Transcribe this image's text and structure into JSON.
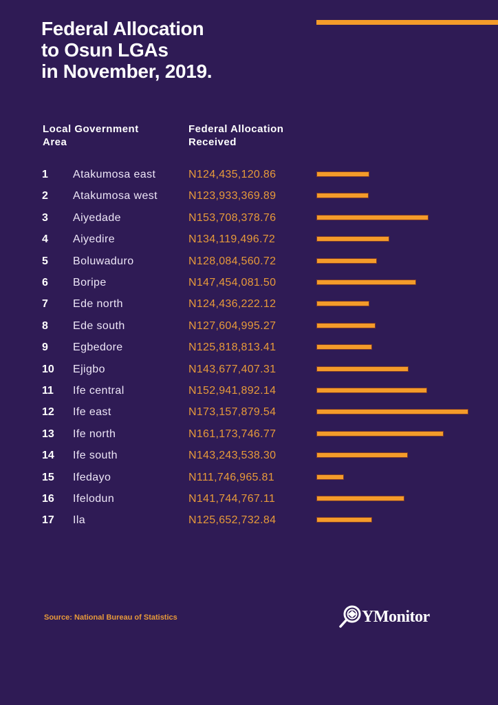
{
  "header": {
    "title": "Federal Allocation\nto Osun LGAs\nin November, 2019.",
    "col_lga": "Local Government\nArea",
    "col_alloc": "Federal Allocation\nReceived"
  },
  "colors": {
    "background": "#2f1b55",
    "accent": "#f49b2a",
    "value_text": "#e79a3a"
  },
  "chart_data": {
    "type": "bar",
    "title": "Federal Allocation to Osun LGAs in November, 2019.",
    "xlabel": "Federal Allocation Received",
    "ylabel": "Local Government Area",
    "orientation": "horizontal",
    "categories": [
      "Atakumosa east",
      "Atakumosa west",
      "Aiyedade",
      "Aiyedire",
      "Boluwaduro",
      "Boripe",
      "Ede north",
      "Ede south",
      "Egbedore",
      "Ejigbo",
      "Ife central",
      "Ife east",
      "Ife north",
      "Ife south",
      "Ifedayo",
      "Ifelodun",
      "Ila"
    ],
    "values": [
      124435120.86,
      123933369.89,
      153708378.76,
      134119496.72,
      128084560.72,
      147454081.5,
      124436222.12,
      127604995.27,
      125818813.41,
      143677407.31,
      152941892.14,
      173157879.54,
      161173746.77,
      143243538.3,
      111746965.81,
      141744767.11,
      125652732.84
    ],
    "rows": [
      {
        "rank": "1",
        "name": "Atakumosa east",
        "value": "N124,435,120.86"
      },
      {
        "rank": "2",
        "name": "Atakumosa west",
        "value": "N123,933,369.89"
      },
      {
        "rank": "3",
        "name": "Aiyedade",
        "value": "N153,708,378.76"
      },
      {
        "rank": "4",
        "name": "Aiyedire",
        "value": "N134,119,496.72"
      },
      {
        "rank": "5",
        "name": "Boluwaduro",
        "value": "N128,084,560.72"
      },
      {
        "rank": "6",
        "name": "Boripe",
        "value": "N147,454,081.50"
      },
      {
        "rank": "7",
        "name": "Ede north",
        "value": "N124,436,222.12"
      },
      {
        "rank": "8",
        "name": "Ede south",
        "value": "N127,604,995.27"
      },
      {
        "rank": "9",
        "name": "Egbedore",
        "value": "N125,818,813.41"
      },
      {
        "rank": "10",
        "name": "Ejigbo",
        "value": "N143,677,407.31"
      },
      {
        "rank": "11",
        "name": "Ife central",
        "value": "N152,941,892.14"
      },
      {
        "rank": "12",
        "name": "Ife east",
        "value": "N173,157,879.54"
      },
      {
        "rank": "13",
        "name": "Ife north",
        "value": "N161,173,746.77"
      },
      {
        "rank": "14",
        "name": "Ife south",
        "value": "N143,243,538.30"
      },
      {
        "rank": "15",
        "name": "Ifedayo",
        "value": "N111,746,965.81"
      },
      {
        "rank": "16",
        "name": "Ifelodun",
        "value": "N141,744,767.11"
      },
      {
        "rank": "17",
        "name": "Ila",
        "value": "N125,652,732.84"
      }
    ]
  },
  "footer": {
    "source": "Source: National Bureau of Statistics",
    "logo_text": "YMonitor",
    "logo_icon": "magnifier-eye-icon"
  }
}
